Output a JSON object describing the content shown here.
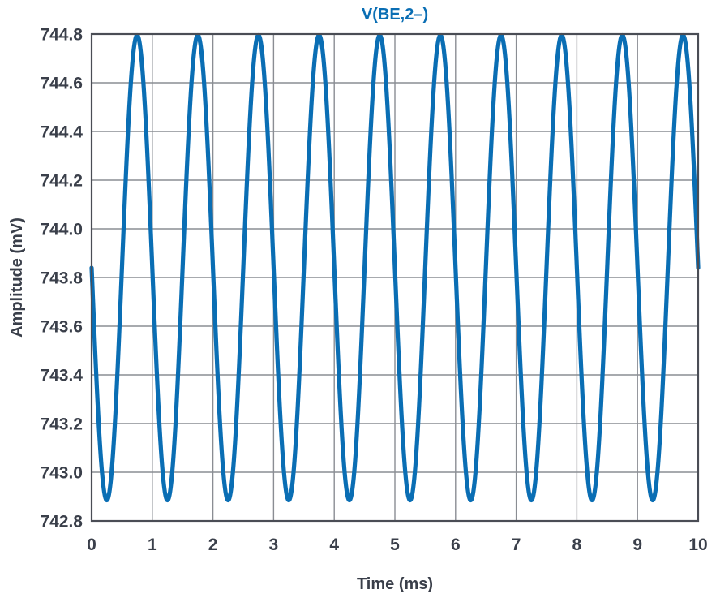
{
  "chart_data": {
    "type": "line",
    "title": "V(BE,2–)",
    "xlabel": "Time (ms)",
    "ylabel": "Amplitude (mV)",
    "xlim": [
      0,
      10
    ],
    "ylim": [
      742.8,
      744.8
    ],
    "x_ticks": [
      "0",
      "1",
      "2",
      "3",
      "4",
      "5",
      "6",
      "7",
      "8",
      "9",
      "10"
    ],
    "y_ticks": [
      "742.8",
      "743.0",
      "743.2",
      "743.4",
      "743.6",
      "743.8",
      "744.0",
      "744.2",
      "744.4",
      "744.6",
      "744.8"
    ],
    "grid": true,
    "series": [
      {
        "name": "V(BE,2–)",
        "color": "#0a6eb4",
        "waveform": "sine",
        "offset_mV": 743.84,
        "amplitude_mV": 0.955,
        "frequency_kHz": 1.0,
        "start_phase": "falling",
        "t_ms": [
          0,
          0.25,
          0.5,
          0.75,
          1.0,
          1.25,
          1.5,
          1.75,
          2.0,
          2.25,
          2.5,
          2.75,
          3.0,
          3.25,
          3.5,
          3.75,
          4.0,
          4.25,
          4.5,
          4.75,
          5.0,
          5.25,
          5.5,
          5.75,
          6.0,
          6.25,
          6.5,
          6.75,
          7.0,
          7.25,
          7.5,
          7.75,
          8.0,
          8.25,
          8.5,
          8.75,
          9.0,
          9.25,
          9.5,
          9.75,
          10.0
        ],
        "v_mV": [
          743.84,
          742.885,
          743.84,
          744.795,
          743.84,
          742.885,
          743.84,
          744.795,
          743.84,
          742.885,
          743.84,
          744.795,
          743.84,
          742.885,
          743.84,
          744.795,
          743.84,
          742.885,
          743.84,
          744.795,
          743.84,
          742.885,
          743.84,
          744.795,
          743.84,
          742.885,
          743.84,
          744.795,
          743.84,
          742.885,
          743.84,
          744.795,
          743.84,
          742.885,
          743.84,
          744.795,
          743.84,
          742.885,
          743.84,
          744.795,
          743.84
        ]
      }
    ]
  }
}
